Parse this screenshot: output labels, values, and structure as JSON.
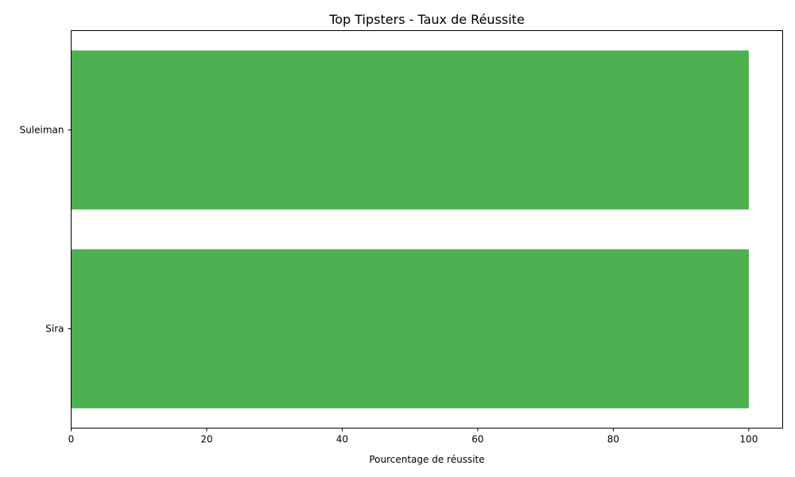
{
  "chart_data": {
    "type": "bar",
    "orientation": "horizontal",
    "title": "Top Tipsters - Taux de Réussite",
    "xlabel": "Pourcentage de réussite",
    "ylabel": "",
    "categories": [
      "Sira",
      "Suleiman"
    ],
    "values": [
      100,
      100
    ],
    "xlim": [
      0,
      105
    ],
    "xticks": [
      0,
      20,
      40,
      60,
      80,
      100
    ],
    "bar_color": "#4caf50",
    "grid": false,
    "legend": false
  }
}
